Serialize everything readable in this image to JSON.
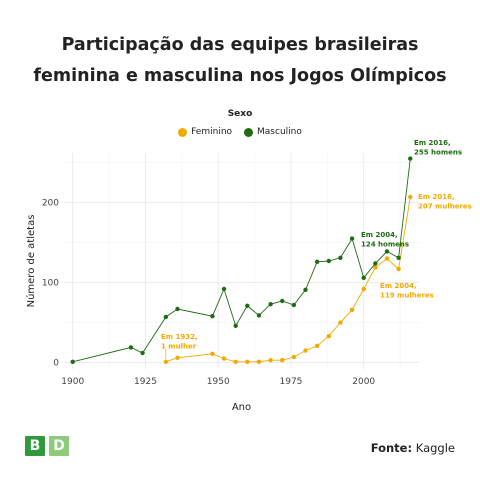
{
  "title_line1": "Participação das equipes brasileiras",
  "title_line2": "feminina e masculina nos Jogos Olímpicos",
  "source_label": "Fonte:",
  "source_value": "Kaggle",
  "logo": [
    "B",
    "D"
  ],
  "chart_data": {
    "type": "line",
    "title": "Participação das equipes brasileiras feminina e masculina nos Jogos Olímpicos",
    "xlabel": "Ano",
    "ylabel": "Número de atletas",
    "xlim": [
      1897,
      2019
    ],
    "ylim": [
      -8,
      262
    ],
    "xticks": [
      1900,
      1925,
      1950,
      1975,
      2000
    ],
    "yticks": [
      0,
      100,
      200
    ],
    "grid": true,
    "legend_title": "Sexo",
    "legend_position": "top",
    "series": [
      {
        "name": "Feminino",
        "color": "#F2A900",
        "points": [
          [
            1932,
            1
          ],
          [
            1936,
            6
          ],
          [
            1948,
            11
          ],
          [
            1952,
            5
          ],
          [
            1956,
            1
          ],
          [
            1960,
            1
          ],
          [
            1964,
            1
          ],
          [
            1968,
            3
          ],
          [
            1972,
            3
          ],
          [
            1976,
            7
          ],
          [
            1980,
            15
          ],
          [
            1984,
            21
          ],
          [
            1988,
            33
          ],
          [
            1992,
            50
          ],
          [
            1996,
            66
          ],
          [
            2000,
            92
          ],
          [
            2004,
            119
          ],
          [
            2008,
            130
          ],
          [
            2012,
            117
          ],
          [
            2016,
            207
          ]
        ]
      },
      {
        "name": "Masculino",
        "color": "#1F6B12",
        "points": [
          [
            1900,
            1
          ],
          [
            1920,
            19
          ],
          [
            1924,
            12
          ],
          [
            1932,
            57
          ],
          [
            1936,
            67
          ],
          [
            1948,
            58
          ],
          [
            1952,
            92
          ],
          [
            1956,
            46
          ],
          [
            1960,
            71
          ],
          [
            1964,
            59
          ],
          [
            1968,
            73
          ],
          [
            1972,
            77
          ],
          [
            1976,
            72
          ],
          [
            1980,
            91
          ],
          [
            1984,
            126
          ],
          [
            1988,
            127
          ],
          [
            1992,
            131
          ],
          [
            1996,
            155
          ],
          [
            2000,
            106
          ],
          [
            2004,
            124
          ],
          [
            2008,
            139
          ],
          [
            2012,
            131
          ],
          [
            2016,
            255
          ]
        ]
      }
    ],
    "annotations": [
      {
        "series": "Feminino",
        "lines": [
          "Em 1932,",
          "1 mulher"
        ],
        "x": 1932,
        "y": 1
      },
      {
        "series": "Masculino",
        "lines": [
          "Em 2004,",
          "124 homens"
        ],
        "x": 2004,
        "y": 124
      },
      {
        "series": "Feminino",
        "lines": [
          "Em 2004,",
          "119 mulheres"
        ],
        "x": 2004,
        "y": 119
      },
      {
        "series": "Masculino",
        "lines": [
          "Em 2016,",
          "255 homens"
        ],
        "x": 2016,
        "y": 255
      },
      {
        "series": "Feminino",
        "lines": [
          "Em 2016,",
          "207 mulheres"
        ],
        "x": 2016,
        "y": 207
      }
    ]
  }
}
